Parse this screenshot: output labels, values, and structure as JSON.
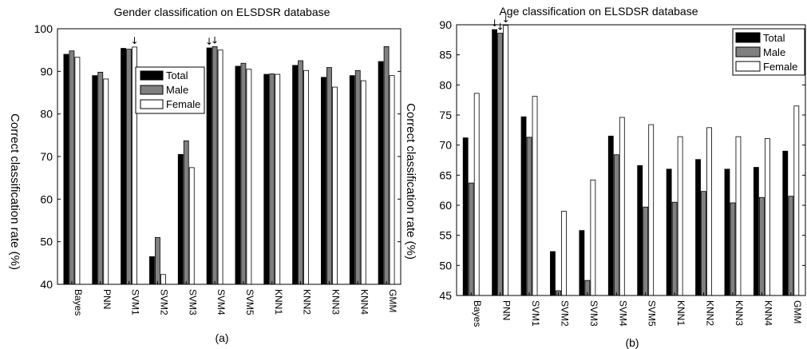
{
  "chart_data": [
    {
      "type": "bar",
      "title": "Gender classification on ELSDSR database",
      "ylabel": "Correct classification rate (%)",
      "subfigure": "(a)",
      "ylim": [
        40,
        100
      ],
      "yticks": [
        "40",
        "50",
        "60",
        "70",
        "80",
        "90",
        "100"
      ],
      "categories": [
        "Bayes",
        "PNN",
        "SVM1",
        "SVM2",
        "SVM3",
        "SVM4",
        "SVM5",
        "KNN1",
        "KNN2",
        "KNN3",
        "KNN4",
        "GMM"
      ],
      "series": [
        {
          "name": "Total",
          "color": "#000000",
          "values": [
            94.0,
            89.0,
            95.4,
            46.5,
            70.5,
            95.5,
            91.2,
            89.3,
            91.4,
            88.6,
            89.0,
            92.3
          ]
        },
        {
          "name": "Male",
          "color": "#808080",
          "values": [
            94.8,
            89.8,
            95.2,
            51.0,
            73.7,
            95.8,
            91.9,
            89.4,
            92.5,
            90.9,
            90.2,
            95.8
          ]
        },
        {
          "name": "Female",
          "color": "#ffffff",
          "values": [
            93.3,
            88.2,
            95.7,
            42.3,
            67.4,
            95.0,
            90.5,
            89.3,
            90.2,
            86.3,
            87.8,
            89.0
          ]
        }
      ],
      "legend_position": "right",
      "arrow_marks": [
        {
          "category": "SVM1",
          "series": "Female"
        },
        {
          "category": "SVM4",
          "series": "Total"
        },
        {
          "category": "SVM4",
          "series": "Male"
        }
      ],
      "grid": false
    },
    {
      "type": "bar",
      "title": "Age classification on ELSDSR database",
      "ylabel": "Correct classification rate (%)",
      "subfigure": "(b)",
      "ylim": [
        45,
        90
      ],
      "yticks": [
        "45",
        "50",
        "55",
        "60",
        "65",
        "70",
        "75",
        "80",
        "85",
        "90"
      ],
      "categories": [
        "Bayes",
        "PNN",
        "SVM1",
        "SVM2",
        "SVM3",
        "SVM4",
        "SVM5",
        "KNN1",
        "KNN2",
        "KNN3",
        "KNN4",
        "GMM"
      ],
      "series": [
        {
          "name": "Total",
          "color": "#000000",
          "values": [
            71.2,
            89.2,
            74.7,
            52.3,
            55.8,
            71.5,
            66.6,
            66.0,
            67.6,
            66.0,
            66.3,
            69.0
          ]
        },
        {
          "name": "Male",
          "color": "#808080",
          "values": [
            63.7,
            88.6,
            71.3,
            45.8,
            47.5,
            68.4,
            59.7,
            60.5,
            62.3,
            60.4,
            61.3,
            61.5
          ]
        },
        {
          "name": "Female",
          "color": "#ffffff",
          "values": [
            78.6,
            89.9,
            78.1,
            59.0,
            64.2,
            74.6,
            73.4,
            71.4,
            72.9,
            71.4,
            71.1,
            76.5
          ]
        }
      ],
      "legend_position": "top-right",
      "arrow_marks": [
        {
          "category": "PNN",
          "series": "Total"
        },
        {
          "category": "PNN",
          "series": "Male"
        },
        {
          "category": "PNN",
          "series": "Female"
        }
      ],
      "grid": false
    }
  ]
}
